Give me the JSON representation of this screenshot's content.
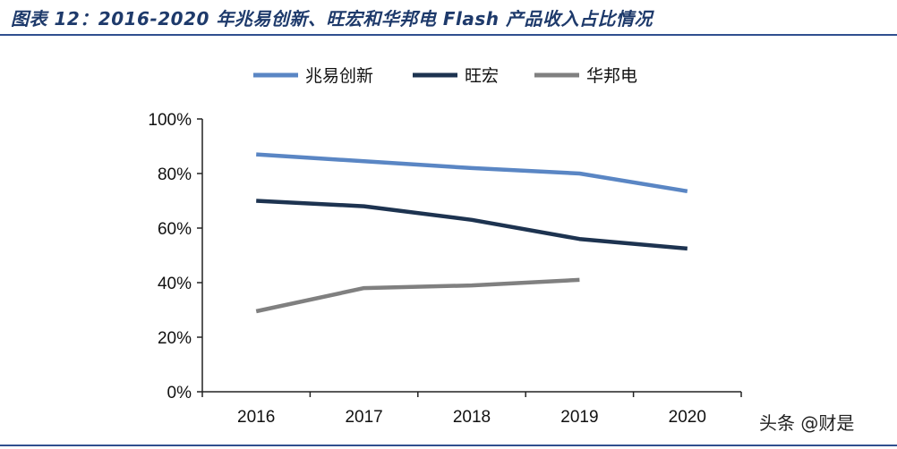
{
  "header": {
    "title": "图表 12：2016-2020 年兆易创新、旺宏和华邦电 Flash 产品收入占比情况"
  },
  "watermark": "头条 @财是",
  "chart_data": {
    "type": "line",
    "x": [
      "2016",
      "2017",
      "2018",
      "2019",
      "2020"
    ],
    "ylim": [
      0,
      100
    ],
    "yticks": [
      "0%",
      "20%",
      "40%",
      "60%",
      "80%",
      "100%"
    ],
    "grid": false,
    "legend_position": "top-center",
    "series": [
      {
        "name": "兆易创新",
        "color": "#5a86c4",
        "values": [
          87,
          84.5,
          82,
          80,
          73.5
        ]
      },
      {
        "name": "旺宏",
        "color": "#1d3350",
        "values": [
          70,
          68,
          63,
          56,
          52.5
        ]
      },
      {
        "name": "华邦电",
        "color": "#808080",
        "values": [
          29.5,
          38,
          39,
          41,
          null
        ]
      }
    ]
  }
}
